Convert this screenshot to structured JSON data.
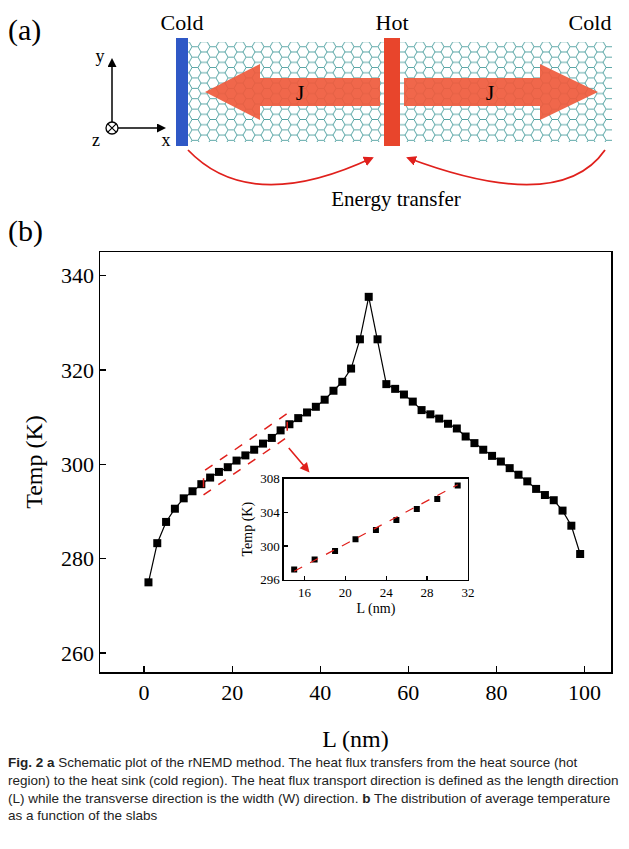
{
  "panel_a": {
    "label": "(a)",
    "cold_left": "Cold",
    "hot": "Hot",
    "cold_right": "Cold",
    "flux_left": "J",
    "flux_right": "J",
    "axes": {
      "x": "x",
      "y": "y",
      "z": "z"
    },
    "energy_transfer": "Energy transfer"
  },
  "panel_b": {
    "label": "(b)"
  },
  "chart_data": [
    {
      "type": "line",
      "x_label": "L (nm)",
      "y_label": "Temp (K)",
      "series": [
        {
          "color": "#000000",
          "marker": "square",
          "line_style": "solid",
          "x": [
            1,
            3,
            5,
            7,
            9,
            11,
            13,
            15,
            17,
            19,
            21,
            23,
            25,
            27,
            29,
            31,
            33,
            35,
            37,
            39,
            41,
            43,
            45,
            47,
            49,
            51,
            53,
            55,
            57,
            59,
            61,
            63,
            65,
            67,
            69,
            71,
            73,
            75,
            77,
            79,
            81,
            83,
            85,
            87,
            89,
            91,
            93,
            95,
            97,
            99
          ],
          "values": [
            275.0,
            283.3,
            287.8,
            290.6,
            292.8,
            294.3,
            295.8,
            297.2,
            298.4,
            299.4,
            300.8,
            301.9,
            303.1,
            304.4,
            305.6,
            307.2,
            308.5,
            309.8,
            311.0,
            312.2,
            313.7,
            315.6,
            317.5,
            320.3,
            326.5,
            335.5,
            326.5,
            317.0,
            316.0,
            314.8,
            313.3,
            311.5,
            310.6,
            309.7,
            308.6,
            307.6,
            305.9,
            304.5,
            303.1,
            301.8,
            300.6,
            299.2,
            297.8,
            296.4,
            294.8,
            293.5,
            292.4,
            290.2,
            287.0,
            281.0
          ]
        }
      ],
      "xlim": [
        -10,
        106
      ],
      "ylim": [
        256,
        345
      ],
      "xticks": [
        0,
        20,
        40,
        60,
        80,
        100
      ],
      "yticks": [
        260,
        280,
        300,
        320,
        340
      ],
      "grid": false
    },
    {
      "type": "line",
      "x_label": "L (nm)",
      "y_label": "Temp (K)",
      "series": [
        {
          "color": "#000000",
          "marker": "square",
          "line_style": "none",
          "x": [
            15,
            17,
            19,
            21,
            23,
            25,
            27,
            29,
            31
          ],
          "values": [
            297.2,
            298.4,
            299.4,
            300.8,
            301.9,
            303.1,
            304.4,
            305.6,
            307.2
          ]
        },
        {
          "color": "#e0201c",
          "marker": "none",
          "line_style": "dashed",
          "x": [
            15,
            31
          ],
          "values": [
            297.0,
            307.3
          ]
        }
      ],
      "xlim": [
        14,
        32
      ],
      "ylim": [
        296,
        308
      ],
      "xticks": [
        16,
        20,
        24,
        28,
        32
      ],
      "yticks": [
        296,
        300,
        304,
        308
      ],
      "grid": false
    }
  ],
  "caption": {
    "label": "Fig. 2",
    "parts": [
      {
        "letter": "a",
        "text": "Schematic plot of the rNEMD method. The heat flux transfers from the heat source (hot region) to the heat sink (cold region). The heat flux transport direction is defined as the length direction (L) while the transverse direction is the width (W) direction."
      },
      {
        "letter": "b",
        "text": "The distribution of average temperature as a function of the slabs"
      }
    ]
  }
}
